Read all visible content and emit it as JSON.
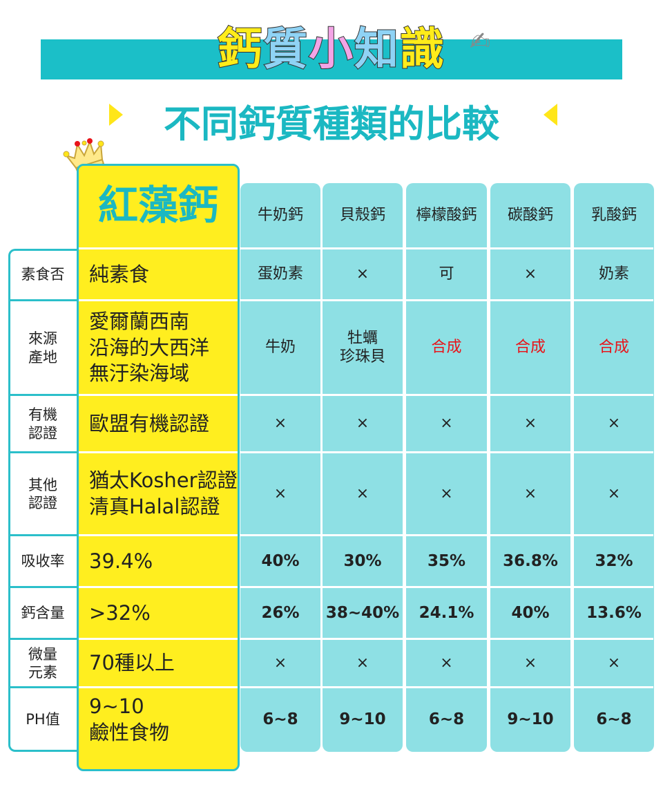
{
  "title": {
    "chars": [
      "鈣",
      "質",
      "小",
      "知",
      "識"
    ],
    "subtitle": "不同鈣質種類的比較"
  },
  "colors": {
    "teal": "#1bbfc8",
    "yellow": "#ffee1f",
    "cell": "#8ee0e4",
    "red": "#e8141a"
  },
  "featured": {
    "name": "紅藻鈣"
  },
  "columns": [
    "牛奶鈣",
    "貝殼鈣",
    "檸檬酸鈣",
    "碳酸鈣",
    "乳酸鈣"
  ],
  "rows": [
    {
      "label": "素食否",
      "featured": "純素食",
      "values": [
        "蛋奶素",
        "×",
        "可",
        "×",
        "奶素"
      ]
    },
    {
      "label": "來源\n產地",
      "featured": "愛爾蘭西南\n沿海的大西洋\n無汙染海域",
      "values": [
        "牛奶",
        "牡蠣\n珍珠貝",
        "合成",
        "合成",
        "合成"
      ]
    },
    {
      "label": "有機\n認證",
      "featured": "歐盟有機認證",
      "values": [
        "×",
        "×",
        "×",
        "×",
        "×"
      ]
    },
    {
      "label": "其他\n認證",
      "featured": "猶太Kosher認證\n清真Halal認證",
      "values": [
        "×",
        "×",
        "×",
        "×",
        "×"
      ]
    },
    {
      "label": "吸收率",
      "featured": "39.4%",
      "values": [
        "40%",
        "30%",
        "35%",
        "36.8%",
        "32%"
      ]
    },
    {
      "label": "鈣含量",
      "featured": ">32%",
      "values": [
        "26%",
        "38~40%",
        "24.1%",
        "40%",
        "13.6%"
      ]
    },
    {
      "label": "微量\n元素",
      "featured": "70種以上",
      "values": [
        "×",
        "×",
        "×",
        "×",
        "×"
      ]
    },
    {
      "label": "PH值",
      "featured": "9~10\n鹼性食物",
      "values": [
        "6~8",
        "9~10",
        "6~8",
        "9~10",
        "6~8"
      ]
    }
  ]
}
